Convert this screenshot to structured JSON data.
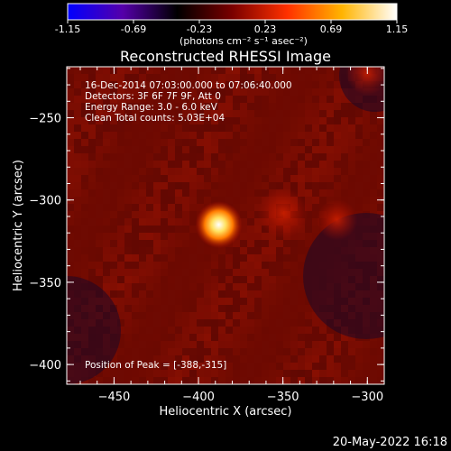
{
  "colorbar": {
    "tick_labels": [
      "-1.15",
      "-0.69",
      "-0.23",
      "0.23",
      "0.69",
      "1.15"
    ],
    "tick_values": [
      -1.15,
      -0.69,
      -0.23,
      0.23,
      0.69,
      1.15
    ],
    "range": [
      -1.15,
      1.15
    ],
    "colors": [
      "#0000ff",
      "#5500aa",
      "#000000",
      "#7a0000",
      "#ff3000",
      "#ffb400",
      "#ffffff"
    ],
    "units_label": "(photons cm⁻² s⁻¹ asec⁻²)"
  },
  "chart_data": {
    "type": "heatmap",
    "title": "Reconstructed RHESSI Image",
    "xlabel": "Heliocentric X (arcsec)",
    "ylabel": "Heliocentric Y (arcsec)",
    "xlim": [
      -478,
      -290
    ],
    "ylim": [
      -412,
      -219
    ],
    "x_ticks": [
      -450,
      -400,
      -350,
      -300
    ],
    "y_ticks": [
      -250,
      -300,
      -350,
      -400
    ],
    "x_tick_labels": [
      "−450",
      "−400",
      "−350",
      "−300"
    ],
    "y_tick_labels": [
      "−250",
      "−300",
      "−350",
      "−400"
    ],
    "annotations": [
      "16-Dec-2014 07:03:00.000 to 07:06:40.000",
      "Detectors: 3F 6F 7F 9F, Att 0",
      "Energy Range: 3.0 - 6.0 keV",
      "Clean    Total counts: 5.03E+04"
    ],
    "peak_label": "Position of Peak = [-388,-315]",
    "peak": {
      "x": -388,
      "y": -315,
      "value": 1.15
    },
    "secondary_sources": [
      {
        "x": -350,
        "y": -308,
        "value": 0.45
      },
      {
        "x": -318,
        "y": -312,
        "value": 0.32
      },
      {
        "x": -300,
        "y": -223,
        "value": 0.35
      }
    ],
    "background_level": 0.3,
    "grid": false
  },
  "footer": {
    "date_stamp": "20-May-2022 16:18"
  }
}
